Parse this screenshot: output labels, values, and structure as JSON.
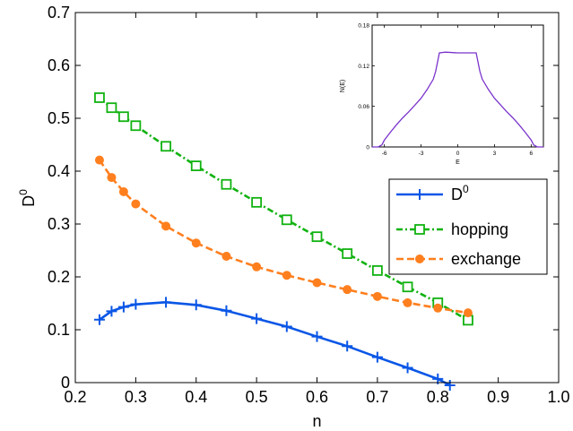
{
  "chart_data": {
    "main": {
      "type": "line",
      "xlabel": "n",
      "ylabel": "D",
      "ylabel_sup": "0",
      "xlim": [
        0.2,
        1.0
      ],
      "ylim": [
        0,
        0.7
      ],
      "xticks": [
        0.2,
        0.3,
        0.4,
        0.5,
        0.6,
        0.7,
        0.8,
        0.9,
        1.0
      ],
      "xtick_labels": [
        "0.2",
        "0.3",
        "0.4",
        "0.5",
        "0.6",
        "0.7",
        "0.8",
        "0.9",
        "1.0"
      ],
      "yticks": [
        0,
        0.1,
        0.2,
        0.3,
        0.4,
        0.5,
        0.6,
        0.7
      ],
      "ytick_labels": [
        "0",
        "0.1",
        "0.2",
        "0.3",
        "0.4",
        "0.5",
        "0.6",
        "0.7"
      ],
      "grid": false,
      "legend_position": "right-middle",
      "series": [
        {
          "name": "D",
          "name_sup": "0",
          "color": "#0a56e6",
          "line": "solid",
          "marker": "plus",
          "x": [
            0.24,
            0.26,
            0.28,
            0.3,
            0.35,
            0.4,
            0.45,
            0.5,
            0.55,
            0.6,
            0.65,
            0.7,
            0.75,
            0.8,
            0.82
          ],
          "y": [
            0.119,
            0.135,
            0.143,
            0.148,
            0.152,
            0.147,
            0.136,
            0.121,
            0.106,
            0.087,
            0.069,
            0.048,
            0.028,
            0.007,
            -0.005
          ]
        },
        {
          "name": "hopping",
          "color": "#11b211",
          "line": "dashdot",
          "marker": "square",
          "x": [
            0.24,
            0.26,
            0.28,
            0.3,
            0.35,
            0.4,
            0.45,
            0.5,
            0.55,
            0.6,
            0.65,
            0.7,
            0.75,
            0.8,
            0.85
          ],
          "y": [
            0.539,
            0.52,
            0.503,
            0.486,
            0.447,
            0.41,
            0.375,
            0.341,
            0.308,
            0.276,
            0.244,
            0.212,
            0.181,
            0.151,
            0.118
          ]
        },
        {
          "name": "exchange",
          "color": "#ff7f1e",
          "line": "dashed",
          "marker": "circle",
          "x": [
            0.24,
            0.26,
            0.28,
            0.3,
            0.35,
            0.4,
            0.45,
            0.5,
            0.55,
            0.6,
            0.65,
            0.7,
            0.75,
            0.8,
            0.85
          ],
          "y": [
            0.421,
            0.388,
            0.361,
            0.338,
            0.296,
            0.264,
            0.239,
            0.219,
            0.203,
            0.189,
            0.176,
            0.163,
            0.151,
            0.141,
            0.132
          ]
        }
      ]
    },
    "inset": {
      "type": "line",
      "xlabel": "E",
      "ylabel": "N(E)",
      "xlim": [
        -7,
        7
      ],
      "ylim": [
        0,
        0.18
      ],
      "xticks": [
        -6,
        -3,
        0,
        3,
        6
      ],
      "xtick_labels": [
        "-6",
        "-3",
        "0",
        "3",
        "6"
      ],
      "yticks": [
        0,
        0.06,
        0.12,
        0.18
      ],
      "ytick_labels": [
        "0",
        "0.06",
        "0.12",
        "0.18"
      ],
      "color": "#7a33cc",
      "x": [
        -7,
        -6.5,
        -6.2,
        -6,
        -5.5,
        -5,
        -4.5,
        -4,
        -3.5,
        -3,
        -2.5,
        -2,
        -1.8,
        -1.5,
        -1,
        0,
        1,
        1.5,
        1.8,
        2,
        2.5,
        3,
        3.5,
        4,
        4.5,
        5,
        5.5,
        6,
        6.2,
        6.5,
        7
      ],
      "y": [
        0.0,
        0.0,
        0.003,
        0.01,
        0.022,
        0.033,
        0.043,
        0.052,
        0.062,
        0.072,
        0.085,
        0.1,
        0.112,
        0.139,
        0.14,
        0.139,
        0.139,
        0.139,
        0.112,
        0.1,
        0.085,
        0.072,
        0.062,
        0.052,
        0.043,
        0.033,
        0.022,
        0.01,
        0.003,
        0.0,
        0.0
      ]
    }
  }
}
